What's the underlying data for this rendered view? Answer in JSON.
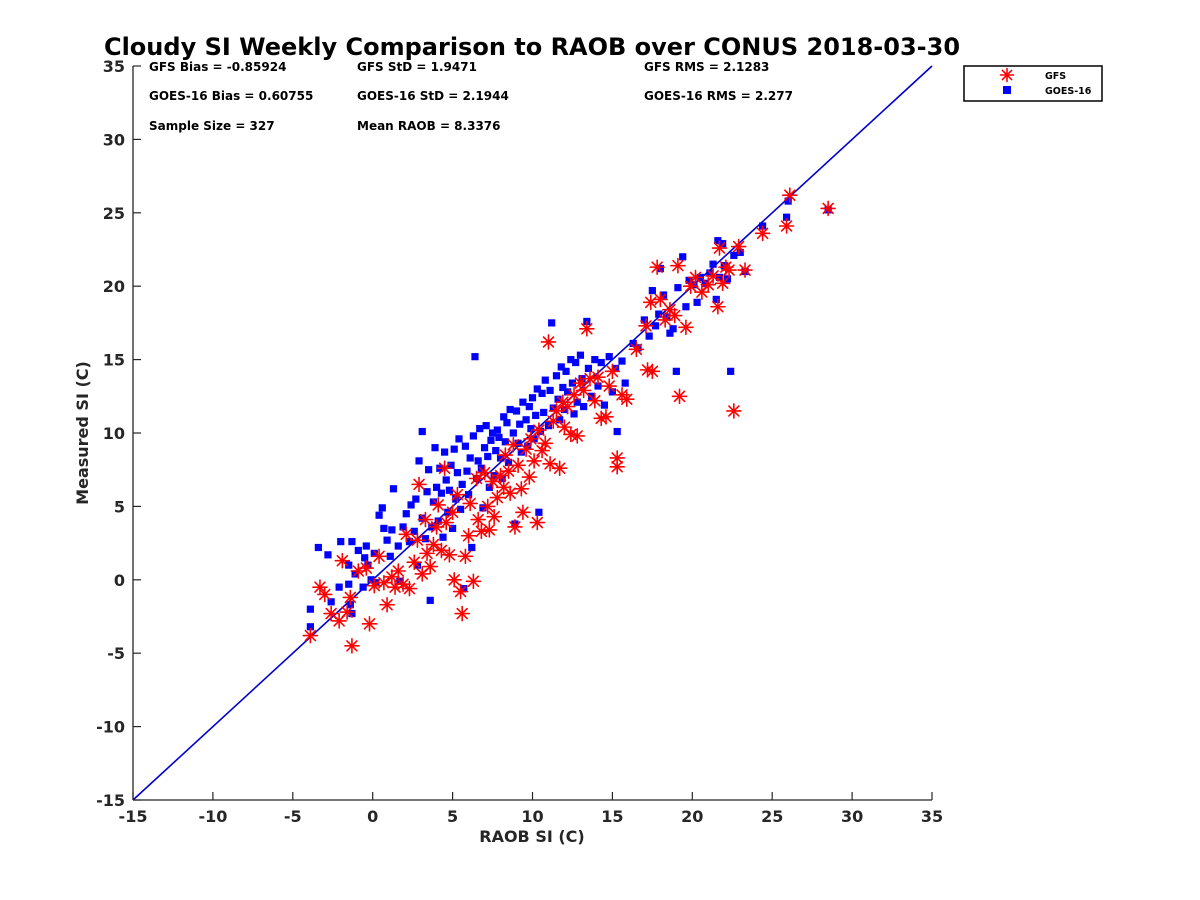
{
  "chart_data": {
    "type": "scatter",
    "title": "Cloudy SI Weekly Comparison to RAOB over CONUS 2018-03-30",
    "xlabel": "RAOB SI (C)",
    "ylabel": "Measured SI (C)",
    "xlim": [
      -15,
      35
    ],
    "ylim": [
      -15,
      35
    ],
    "xticks": [
      -15,
      -10,
      -5,
      0,
      5,
      10,
      15,
      20,
      25,
      30,
      35
    ],
    "yticks": [
      -15,
      -10,
      -5,
      0,
      5,
      10,
      15,
      20,
      25,
      30,
      35
    ],
    "grid": false,
    "legend_position": "top-right outside plot",
    "reference_line": {
      "from": [
        -15,
        -15
      ],
      "to": [
        35,
        35
      ],
      "color": "#0000cc"
    },
    "stats": {
      "gfs_bias": "GFS Bias = -0.85924",
      "gfs_std": "GFS StD = 1.9471",
      "gfs_rms": "GFS RMS = 2.1283",
      "goes_bias": "GOES-16 Bias = 0.60755",
      "goes_std": "GOES-16 StD = 2.1944",
      "goes_rms": "GOES-16 RMS = 2.277",
      "sample_size": "Sample Size = 327",
      "mean_raob": "Mean RAOB = 8.3376"
    },
    "series": [
      {
        "name": "GFS",
        "marker": "asterisk",
        "color": "#ff0000",
        "points": [
          [
            -3.9,
            -3.8
          ],
          [
            -3.3,
            -0.5
          ],
          [
            -3.0,
            -1.0
          ],
          [
            -2.6,
            -2.3
          ],
          [
            -2.1,
            -2.8
          ],
          [
            -1.9,
            1.3
          ],
          [
            -1.6,
            -2.2
          ],
          [
            -1.4,
            -1.2
          ],
          [
            -1.3,
            -4.5
          ],
          [
            -0.9,
            0.6
          ],
          [
            -0.4,
            0.8
          ],
          [
            -0.2,
            -3.0
          ],
          [
            0.1,
            -0.4
          ],
          [
            0.4,
            1.6
          ],
          [
            0.7,
            -0.2
          ],
          [
            0.9,
            -1.7
          ],
          [
            1.2,
            0.2
          ],
          [
            1.4,
            -0.5
          ],
          [
            1.6,
            0.6
          ],
          [
            1.9,
            -0.3
          ],
          [
            2.1,
            3.1
          ],
          [
            2.3,
            -0.6
          ],
          [
            2.6,
            1.2
          ],
          [
            2.8,
            2.7
          ],
          [
            2.9,
            6.5
          ],
          [
            3.1,
            0.4
          ],
          [
            3.3,
            4.1
          ],
          [
            3.4,
            1.8
          ],
          [
            3.6,
            0.9
          ],
          [
            3.8,
            2.4
          ],
          [
            4.0,
            3.6
          ],
          [
            4.1,
            5.1
          ],
          [
            4.3,
            2.0
          ],
          [
            4.5,
            7.6
          ],
          [
            4.6,
            3.9
          ],
          [
            4.8,
            1.7
          ],
          [
            5.0,
            4.6
          ],
          [
            5.1,
            0.0
          ],
          [
            5.3,
            5.8
          ],
          [
            5.5,
            -0.8
          ],
          [
            5.6,
            -2.3
          ],
          [
            5.8,
            1.6
          ],
          [
            6.0,
            3.0
          ],
          [
            6.1,
            5.2
          ],
          [
            6.3,
            -0.1
          ],
          [
            6.5,
            6.9
          ],
          [
            6.6,
            4.1
          ],
          [
            6.8,
            3.3
          ],
          [
            7.0,
            7.3
          ],
          [
            7.2,
            5.0
          ],
          [
            7.3,
            3.4
          ],
          [
            7.5,
            6.7
          ],
          [
            7.6,
            4.3
          ],
          [
            7.8,
            5.6
          ],
          [
            8.0,
            7.1
          ],
          [
            8.2,
            6.3
          ],
          [
            8.3,
            8.5
          ],
          [
            8.5,
            7.4
          ],
          [
            8.6,
            5.9
          ],
          [
            8.8,
            9.2
          ],
          [
            8.9,
            3.6
          ],
          [
            9.1,
            7.8
          ],
          [
            9.3,
            6.2
          ],
          [
            9.4,
            4.6
          ],
          [
            9.6,
            8.9
          ],
          [
            9.8,
            7.0
          ],
          [
            9.9,
            9.6
          ],
          [
            10.1,
            8.1
          ],
          [
            10.3,
            3.9
          ],
          [
            10.4,
            10.2
          ],
          [
            10.6,
            8.8
          ],
          [
            10.8,
            9.3
          ],
          [
            11.0,
            16.2
          ],
          [
            11.1,
            7.9
          ],
          [
            11.3,
            10.8
          ],
          [
            11.5,
            11.5
          ],
          [
            11.7,
            7.6
          ],
          [
            11.9,
            12.1
          ],
          [
            12.0,
            10.4
          ],
          [
            12.2,
            11.8
          ],
          [
            12.4,
            9.9
          ],
          [
            12.6,
            12.6
          ],
          [
            12.8,
            9.8
          ],
          [
            13.0,
            13.4
          ],
          [
            13.2,
            12.9
          ],
          [
            13.4,
            17.1
          ],
          [
            13.6,
            13.7
          ],
          [
            13.9,
            12.2
          ],
          [
            14.1,
            13.8
          ],
          [
            14.3,
            11.0
          ],
          [
            14.6,
            11.1
          ],
          [
            14.8,
            13.2
          ],
          [
            15.0,
            14.2
          ],
          [
            15.3,
            7.7
          ],
          [
            15.3,
            8.3
          ],
          [
            15.6,
            12.6
          ],
          [
            15.9,
            12.3
          ],
          [
            16.5,
            15.7
          ],
          [
            17.1,
            17.3
          ],
          [
            17.2,
            14.3
          ],
          [
            17.4,
            18.9
          ],
          [
            17.5,
            14.2
          ],
          [
            17.8,
            21.3
          ],
          [
            18.0,
            19.1
          ],
          [
            18.3,
            17.7
          ],
          [
            18.6,
            18.4
          ],
          [
            18.9,
            18.0
          ],
          [
            19.1,
            21.4
          ],
          [
            19.2,
            12.5
          ],
          [
            19.6,
            17.2
          ],
          [
            19.9,
            20.0
          ],
          [
            20.2,
            20.6
          ],
          [
            20.6,
            19.6
          ],
          [
            21.0,
            20.1
          ],
          [
            21.3,
            20.7
          ],
          [
            21.6,
            18.6
          ],
          [
            21.7,
            22.6
          ],
          [
            21.9,
            20.2
          ],
          [
            22.1,
            21.3
          ],
          [
            22.3,
            21.1
          ],
          [
            22.6,
            11.5
          ],
          [
            22.9,
            22.7
          ],
          [
            23.3,
            21.1
          ],
          [
            24.4,
            23.6
          ],
          [
            25.9,
            24.1
          ],
          [
            26.1,
            26.2
          ],
          [
            28.5,
            25.3
          ]
        ]
      },
      {
        "name": "GOES-16",
        "marker": "square",
        "color": "#0000ff",
        "points": [
          [
            -3.9,
            -3.2
          ],
          [
            -3.9,
            -2.0
          ],
          [
            -3.4,
            2.2
          ],
          [
            -2.8,
            1.7
          ],
          [
            -2.6,
            -1.5
          ],
          [
            -2.1,
            -0.5
          ],
          [
            -2.0,
            2.6
          ],
          [
            -1.5,
            -0.3
          ],
          [
            -1.5,
            1.0
          ],
          [
            -1.4,
            -1.7
          ],
          [
            -1.3,
            -2.3
          ],
          [
            -1.3,
            2.6
          ],
          [
            -1.1,
            0.4
          ],
          [
            -0.9,
            2.0
          ],
          [
            -0.6,
            -0.5
          ],
          [
            -0.5,
            1.5
          ],
          [
            -0.4,
            2.3
          ],
          [
            -0.3,
            1.0
          ],
          [
            -0.1,
            0.0
          ],
          [
            0.1,
            1.8
          ],
          [
            0.2,
            -0.2
          ],
          [
            0.4,
            4.4
          ],
          [
            0.6,
            4.9
          ],
          [
            0.7,
            3.5
          ],
          [
            0.9,
            2.7
          ],
          [
            1.1,
            1.6
          ],
          [
            1.2,
            3.4
          ],
          [
            1.3,
            6.2
          ],
          [
            1.6,
            2.3
          ],
          [
            1.7,
            -0.1
          ],
          [
            1.9,
            3.6
          ],
          [
            2.1,
            4.5
          ],
          [
            2.3,
            2.6
          ],
          [
            2.4,
            5.1
          ],
          [
            2.6,
            3.3
          ],
          [
            2.7,
            5.5
          ],
          [
            2.8,
            1.0
          ],
          [
            2.9,
            8.1
          ],
          [
            3.1,
            4.2
          ],
          [
            3.1,
            10.1
          ],
          [
            3.3,
            2.8
          ],
          [
            3.4,
            6.0
          ],
          [
            3.5,
            7.5
          ],
          [
            3.6,
            -1.4
          ],
          [
            3.7,
            3.6
          ],
          [
            3.8,
            5.3
          ],
          [
            3.9,
            9.0
          ],
          [
            4.0,
            6.3
          ],
          [
            4.1,
            4.0
          ],
          [
            4.2,
            7.6
          ],
          [
            4.3,
            5.9
          ],
          [
            4.4,
            2.9
          ],
          [
            4.5,
            8.7
          ],
          [
            4.6,
            6.8
          ],
          [
            4.7,
            4.6
          ],
          [
            4.8,
            6.1
          ],
          [
            4.9,
            7.8
          ],
          [
            5.0,
            3.5
          ],
          [
            5.1,
            8.9
          ],
          [
            5.2,
            5.5
          ],
          [
            5.3,
            7.3
          ],
          [
            5.4,
            9.6
          ],
          [
            5.5,
            4.8
          ],
          [
            5.6,
            6.5
          ],
          [
            5.7,
            -0.6
          ],
          [
            5.8,
            9.1
          ],
          [
            5.9,
            7.4
          ],
          [
            6.0,
            5.8
          ],
          [
            6.1,
            8.3
          ],
          [
            6.2,
            2.2
          ],
          [
            6.3,
            9.8
          ],
          [
            6.4,
            15.2
          ],
          [
            6.5,
            6.9
          ],
          [
            6.6,
            8.1
          ],
          [
            6.7,
            10.3
          ],
          [
            6.8,
            7.6
          ],
          [
            6.9,
            4.9
          ],
          [
            7.0,
            9.0
          ],
          [
            7.1,
            10.5
          ],
          [
            7.2,
            8.4
          ],
          [
            7.3,
            6.3
          ],
          [
            7.4,
            9.5
          ],
          [
            7.5,
            10.0
          ],
          [
            7.6,
            7.1
          ],
          [
            7.7,
            8.8
          ],
          [
            7.8,
            10.2
          ],
          [
            7.9,
            9.7
          ],
          [
            8.0,
            8.3
          ],
          [
            8.1,
            6.9
          ],
          [
            8.2,
            11.1
          ],
          [
            8.3,
            9.4
          ],
          [
            8.4,
            10.7
          ],
          [
            8.5,
            8.0
          ],
          [
            8.6,
            11.6
          ],
          [
            8.8,
            10.0
          ],
          [
            8.9,
            3.8
          ],
          [
            9.0,
            11.5
          ],
          [
            9.1,
            9.3
          ],
          [
            9.2,
            10.6
          ],
          [
            9.3,
            8.7
          ],
          [
            9.4,
            12.1
          ],
          [
            9.6,
            10.9
          ],
          [
            9.7,
            9.1
          ],
          [
            9.8,
            11.8
          ],
          [
            9.9,
            10.3
          ],
          [
            10.0,
            12.4
          ],
          [
            10.1,
            9.6
          ],
          [
            10.2,
            11.2
          ],
          [
            10.3,
            13.0
          ],
          [
            10.4,
            4.6
          ],
          [
            10.5,
            10.1
          ],
          [
            10.6,
            12.7
          ],
          [
            10.7,
            11.4
          ],
          [
            10.8,
            13.6
          ],
          [
            11.0,
            10.5
          ],
          [
            11.1,
            12.9
          ],
          [
            11.2,
            17.5
          ],
          [
            11.3,
            11.7
          ],
          [
            11.5,
            13.9
          ],
          [
            11.6,
            12.3
          ],
          [
            11.7,
            10.9
          ],
          [
            11.8,
            14.5
          ],
          [
            11.9,
            13.1
          ],
          [
            12.0,
            11.6
          ],
          [
            12.1,
            14.2
          ],
          [
            12.2,
            12.8
          ],
          [
            12.4,
            15.0
          ],
          [
            12.5,
            13.4
          ],
          [
            12.6,
            11.3
          ],
          [
            12.7,
            14.8
          ],
          [
            12.8,
            12.1
          ],
          [
            13.0,
            15.3
          ],
          [
            13.1,
            13.7
          ],
          [
            13.2,
            11.8
          ],
          [
            13.4,
            17.6
          ],
          [
            13.5,
            14.4
          ],
          [
            13.7,
            12.5
          ],
          [
            13.9,
            15.0
          ],
          [
            14.1,
            13.2
          ],
          [
            14.3,
            14.8
          ],
          [
            14.5,
            11.9
          ],
          [
            14.8,
            15.2
          ],
          [
            15.0,
            12.8
          ],
          [
            15.2,
            14.4
          ],
          [
            15.3,
            10.1
          ],
          [
            15.6,
            14.9
          ],
          [
            15.8,
            13.4
          ],
          [
            16.3,
            16.1
          ],
          [
            16.6,
            15.8
          ],
          [
            17.0,
            17.7
          ],
          [
            17.3,
            16.6
          ],
          [
            17.5,
            19.7
          ],
          [
            17.7,
            17.3
          ],
          [
            17.9,
            18.1
          ],
          [
            18.0,
            21.2
          ],
          [
            18.2,
            19.4
          ],
          [
            18.4,
            17.9
          ],
          [
            18.6,
            16.8
          ],
          [
            18.8,
            17.1
          ],
          [
            19.0,
            14.2
          ],
          [
            19.1,
            19.9
          ],
          [
            19.4,
            22.0
          ],
          [
            19.6,
            18.6
          ],
          [
            19.8,
            20.4
          ],
          [
            20.1,
            20.1
          ],
          [
            20.3,
            18.9
          ],
          [
            20.5,
            20.6
          ],
          [
            20.8,
            20.2
          ],
          [
            21.1,
            20.9
          ],
          [
            21.3,
            21.5
          ],
          [
            21.5,
            19.1
          ],
          [
            21.6,
            23.1
          ],
          [
            21.7,
            20.6
          ],
          [
            21.9,
            22.9
          ],
          [
            22.0,
            21.4
          ],
          [
            22.2,
            20.5
          ],
          [
            22.4,
            14.2
          ],
          [
            22.6,
            22.1
          ],
          [
            23.0,
            22.3
          ],
          [
            23.3,
            21.0
          ],
          [
            24.4,
            24.1
          ],
          [
            25.9,
            24.7
          ],
          [
            26.0,
            25.8
          ],
          [
            28.5,
            25.2
          ]
        ]
      }
    ]
  }
}
